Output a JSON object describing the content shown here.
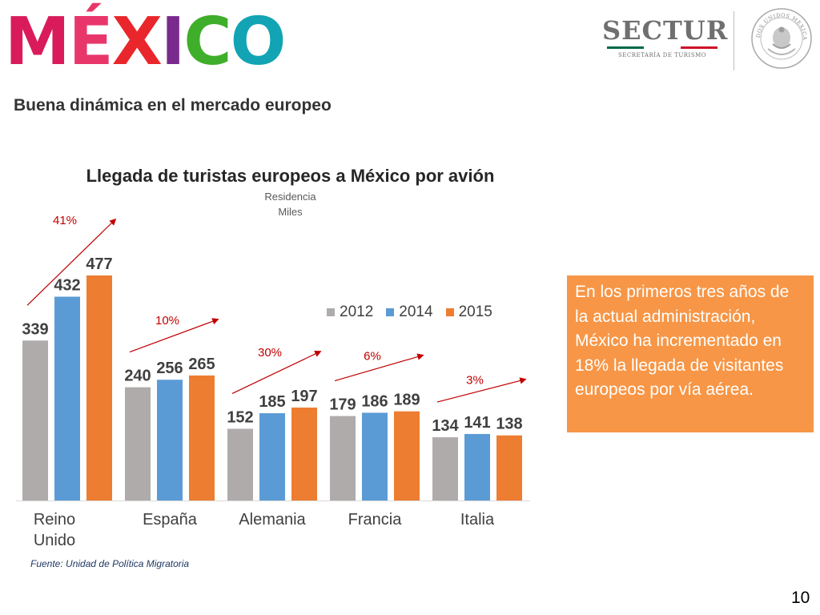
{
  "header": {
    "logo_text": "MÉXICO",
    "logo_letter_colors": [
      "#d91b5c",
      "#e8366b",
      "#e9262b",
      "#7a2a8c",
      "#3fae2a",
      "#12a4b4"
    ],
    "ministry_name": "SECTUR",
    "ministry_subtitle": "SECRETARÍA DE TURISMO",
    "flag_colors": [
      "#006847",
      "#ffffff",
      "#ce1126"
    ],
    "seal_text": "ESTADOS UNIDOS MEXICANOS"
  },
  "slide": {
    "heading": "Buena dinámica en el mercado europeo",
    "source": "Fuente: Unidad de Política Migratoria",
    "page_number": "10"
  },
  "note": {
    "text": "En los primeros tres años de la actual administración, México ha incrementado en 18% la llegada de visitantes europeos por vía aérea.",
    "background_color": "#f79646"
  },
  "chart_data": {
    "type": "bar",
    "title": "Llegada de turistas europeos a México por avión",
    "subtitle_lines": [
      "Residencia",
      "Miles"
    ],
    "categories": [
      "Reino Unido",
      "España",
      "Alemania",
      "Francia",
      "Italia"
    ],
    "series": [
      {
        "name": "2012",
        "color": "#afabab",
        "values": [
          339,
          240,
          152,
          179,
          134
        ]
      },
      {
        "name": "2014",
        "color": "#5b9bd5",
        "values": [
          432,
          256,
          185,
          186,
          141
        ]
      },
      {
        "name": "2015",
        "color": "#ed7d31",
        "values": [
          477,
          265,
          197,
          189,
          138
        ]
      }
    ],
    "growth_labels": [
      "41%",
      "10%",
      "30%",
      "6%",
      "3%"
    ],
    "growth_color": "#c00000",
    "ylim": [
      0,
      477
    ],
    "legend_position": "top-right",
    "grid": false
  }
}
